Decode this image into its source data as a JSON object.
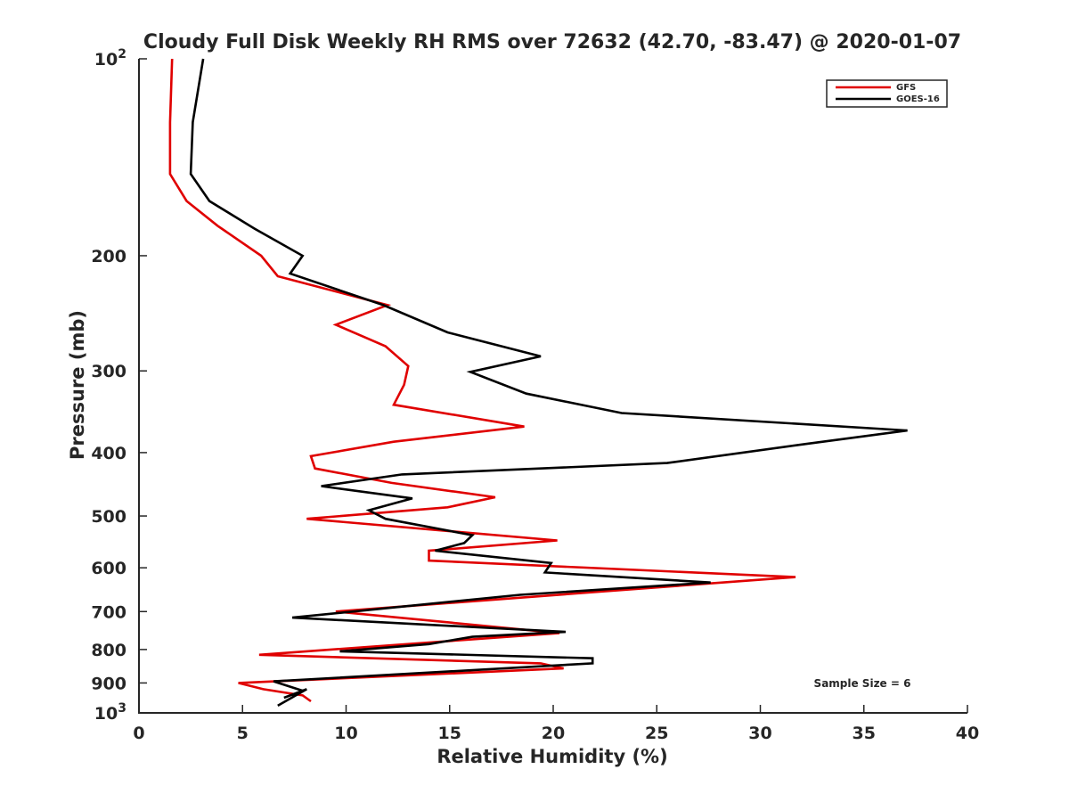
{
  "chart_data": {
    "type": "line",
    "title": "Cloudy Full Disk Weekly RH RMS over 72632 (42.70, -83.47) @ 2020-01-07",
    "xlabel": "Relative Humidity (%)",
    "ylabel": "Pressure (mb)",
    "xlim": [
      0,
      40
    ],
    "ylim": [
      100,
      1000
    ],
    "y_scale": "log",
    "y_reversed": true,
    "x_ticks": [
      "0",
      "5",
      "10",
      "15",
      "20",
      "25",
      "30",
      "35",
      "40"
    ],
    "y_ticks": [
      {
        "value": 100,
        "base": "10",
        "exp": "2"
      },
      {
        "value": 200,
        "label": "200"
      },
      {
        "value": 300,
        "label": "300"
      },
      {
        "value": 400,
        "label": "400"
      },
      {
        "value": 500,
        "label": "500"
      },
      {
        "value": 600,
        "label": "600"
      },
      {
        "value": 700,
        "label": "700"
      },
      {
        "value": 800,
        "label": "800"
      },
      {
        "value": 900,
        "label": "900"
      },
      {
        "value": 1000,
        "base": "10",
        "exp": "3"
      }
    ],
    "grid": false,
    "legend_position": "top-right",
    "annotation": "Sample Size = 6",
    "series": [
      {
        "name": "GFS",
        "color": "#e00000",
        "points": [
          [
            1.6,
            100
          ],
          [
            1.5,
            125
          ],
          [
            1.5,
            150
          ],
          [
            2.3,
            165
          ],
          [
            3.8,
            180
          ],
          [
            5.9,
            200
          ],
          [
            6.7,
            215
          ],
          [
            12.0,
            238
          ],
          [
            9.5,
            255
          ],
          [
            11.9,
            275
          ],
          [
            13.0,
            295
          ],
          [
            12.8,
            315
          ],
          [
            12.3,
            338
          ],
          [
            18.6,
            365
          ],
          [
            12.3,
            385
          ],
          [
            8.3,
            405
          ],
          [
            8.5,
            423
          ],
          [
            12.2,
            445
          ],
          [
            17.2,
            468
          ],
          [
            14.9,
            485
          ],
          [
            8.1,
            505
          ],
          [
            20.2,
            545
          ],
          [
            14.0,
            565
          ],
          [
            14.0,
            585
          ],
          [
            31.7,
            620
          ],
          [
            21.6,
            655
          ],
          [
            9.5,
            700
          ],
          [
            20.3,
            755
          ],
          [
            5.8,
            815
          ],
          [
            19.4,
            840
          ],
          [
            20.5,
            855
          ],
          [
            4.8,
            900
          ],
          [
            6.0,
            920
          ],
          [
            7.9,
            940
          ],
          [
            8.3,
            960
          ]
        ]
      },
      {
        "name": "GOES-16",
        "color": "#000000",
        "points": [
          [
            3.1,
            100
          ],
          [
            2.6,
            125
          ],
          [
            2.5,
            150
          ],
          [
            3.4,
            165
          ],
          [
            5.6,
            182
          ],
          [
            7.9,
            200
          ],
          [
            7.3,
            213
          ],
          [
            11.8,
            238
          ],
          [
            14.9,
            262
          ],
          [
            19.4,
            285
          ],
          [
            16.0,
            301
          ],
          [
            18.7,
            325
          ],
          [
            23.3,
            348
          ],
          [
            37.1,
            370
          ],
          [
            32.2,
            388
          ],
          [
            25.5,
            415
          ],
          [
            12.7,
            432
          ],
          [
            8.8,
            450
          ],
          [
            13.2,
            470
          ],
          [
            11.1,
            490
          ],
          [
            11.9,
            505
          ],
          [
            16.1,
            535
          ],
          [
            15.7,
            550
          ],
          [
            14.3,
            565
          ],
          [
            19.9,
            590
          ],
          [
            19.6,
            610
          ],
          [
            27.6,
            632
          ],
          [
            18.4,
            660
          ],
          [
            7.4,
            715
          ],
          [
            20.6,
            752
          ],
          [
            16.1,
            765
          ],
          [
            14.0,
            785
          ],
          [
            9.7,
            805
          ],
          [
            21.9,
            825
          ],
          [
            21.9,
            840
          ],
          [
            6.5,
            895
          ],
          [
            7.9,
            925
          ],
          [
            7.0,
            948
          ],
          [
            8.1,
            920
          ],
          [
            6.7,
            975
          ]
        ]
      }
    ]
  }
}
